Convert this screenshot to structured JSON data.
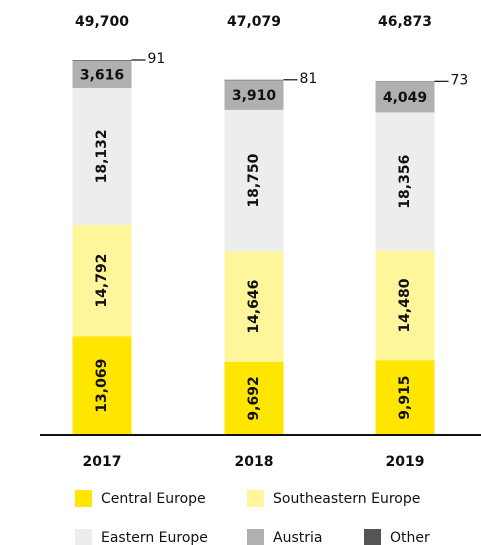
{
  "chart_data": {
    "type": "stacked_bar",
    "categories": [
      "2017",
      "2018",
      "2019"
    ],
    "totals": [
      49700,
      47079,
      46873
    ],
    "total_labels": [
      "49,700",
      "47,079",
      "46,873"
    ],
    "series": [
      {
        "name": "Central Europe",
        "color": "#ffe600",
        "values": [
          13069,
          9692,
          9915
        ],
        "value_labels": [
          "13,069",
          "9,692",
          "9,915"
        ]
      },
      {
        "name": "Southeastern Europe",
        "color": "#fff59a",
        "values": [
          14792,
          14646,
          14480
        ],
        "value_labels": [
          "14,792",
          "14,646",
          "14,480"
        ]
      },
      {
        "name": "Eastern Europe",
        "color": "#ededed",
        "values": [
          18132,
          18750,
          18356
        ],
        "value_labels": [
          "18,132",
          "18,750",
          "18,356"
        ]
      },
      {
        "name": "Austria",
        "color": "#b0b0b0",
        "values": [
          3616,
          3910,
          4049
        ],
        "value_labels": [
          "3,616",
          "3,910",
          "4,049"
        ]
      },
      {
        "name": "Other",
        "color": "#555555",
        "values": [
          91,
          81,
          73
        ]
      }
    ]
  }
}
